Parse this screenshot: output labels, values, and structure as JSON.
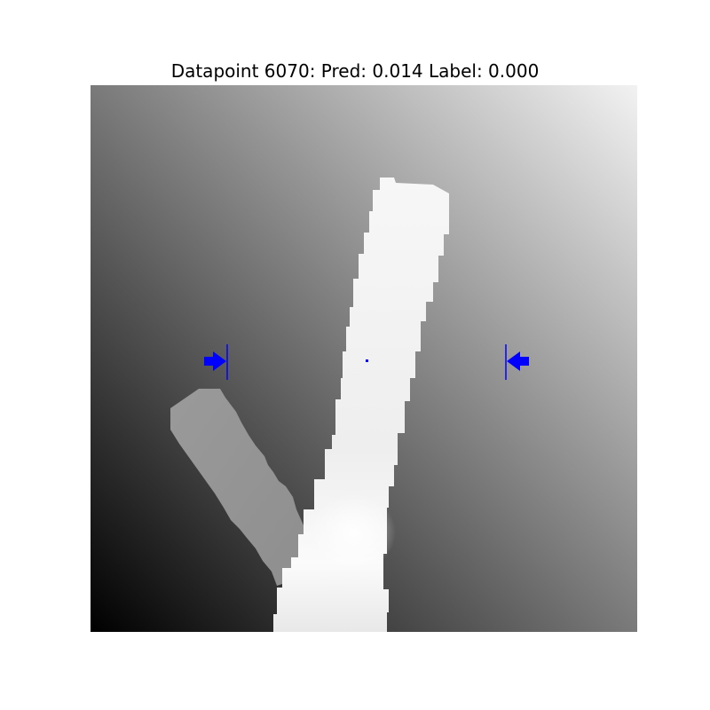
{
  "figure": {
    "title": "Datapoint 6070: Pred: 0.014 Label: 0.000"
  },
  "image": {
    "description_icon": "depth-image",
    "marker_color": "#0000ff"
  }
}
